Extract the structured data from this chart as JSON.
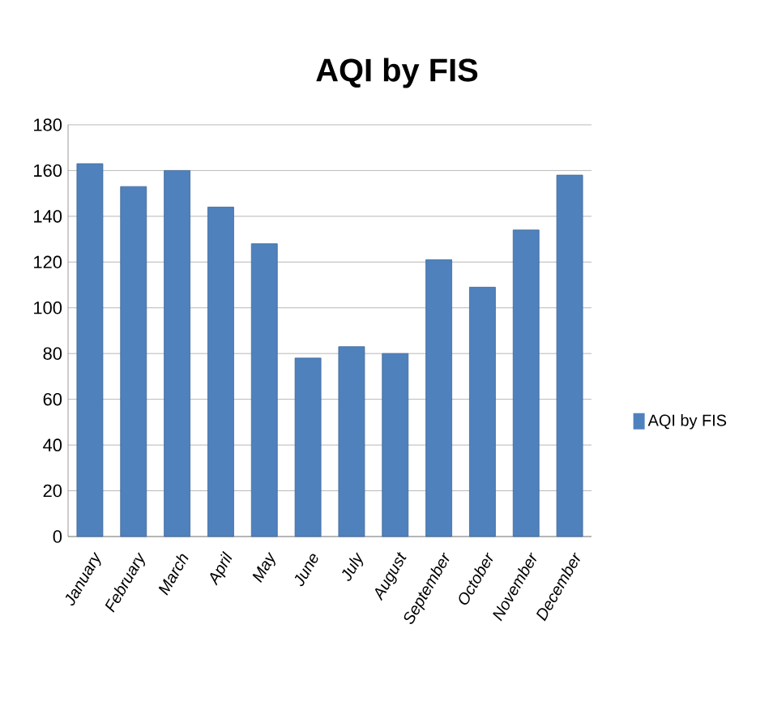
{
  "chart_data": {
    "type": "bar",
    "title": "AQI by FIS",
    "categories": [
      "January",
      "February",
      "March",
      "April",
      "May",
      "June",
      "July",
      "August",
      "September",
      "October",
      "November",
      "December"
    ],
    "series": [
      {
        "name": "AQI by FIS",
        "color": "#4f81bd",
        "values": [
          163,
          153,
          160,
          144,
          128,
          78,
          83,
          80,
          121,
          109,
          134,
          158
        ]
      }
    ],
    "ylim": [
      0,
      180
    ],
    "yticks": [
      0,
      20,
      40,
      60,
      80,
      100,
      120,
      140,
      160,
      180
    ],
    "grid": "y",
    "legend": "right"
  }
}
